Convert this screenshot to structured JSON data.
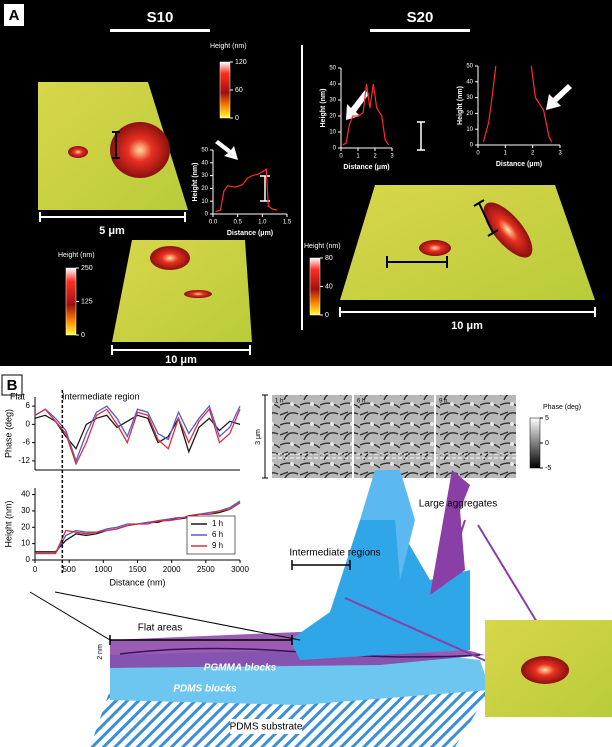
{
  "panel_a": {
    "label": "A",
    "s10": {
      "title": "S10",
      "scale_3d": "5 μm",
      "scale_2d": "10 μm"
    },
    "s20": {
      "title": "S20",
      "scale_3d": "10 μm"
    }
  },
  "panel_b": {
    "label": "B",
    "flat_label": "Flat",
    "intermediate_label": "Intermediate region",
    "boundary_x": 400,
    "phase_image": {
      "panels": [
        "1 h",
        "6 h",
        "9 h"
      ],
      "scale": "3 μm"
    },
    "diagram": {
      "large_aggregates": "Large aggregates",
      "intermediate_regions": "Intermediate regions",
      "flat_areas": "Flat areas",
      "pgmma": "PGMMA blocks",
      "pdms_blocks": "PDMS blocks",
      "substrate": "PDMS substrate",
      "thickness": "2 nm"
    }
  },
  "colorbars": [
    {
      "title": "Height (nm)",
      "lim": [
        0,
        120
      ],
      "ticks": [
        120,
        60,
        0
      ]
    },
    {
      "title": "Height (nm)",
      "lim": [
        0,
        250
      ],
      "ticks": [
        250,
        125,
        0
      ]
    },
    {
      "title": "Height (nm)",
      "lim": [
        0,
        80
      ],
      "ticks": [
        80,
        40,
        0
      ]
    },
    {
      "title": "Phase (deg)",
      "lim": [
        -5,
        5
      ],
      "ticks": [
        5,
        0,
        -5
      ]
    }
  ],
  "chart_data": [
    {
      "type": "line",
      "xlabel": "Distance (μm)",
      "ylabel": "Height (nm)",
      "xlim": [
        0,
        1.5
      ],
      "ylim": [
        0,
        50
      ],
      "xticks": [
        {
          "value": 0,
          "label": "0.0"
        },
        {
          "value": 0.5,
          "label": "0.5"
        },
        {
          "value": 1,
          "label": "1.0"
        },
        {
          "value": 1.5,
          "label": "1.5"
        }
      ],
      "yticks": [
        0,
        10,
        20,
        30,
        40,
        50
      ],
      "color": "#ff2a2a",
      "x": [
        0.05,
        0.15,
        0.22,
        0.3,
        0.45,
        0.6,
        0.7,
        0.8,
        0.9,
        1.0,
        1.08,
        1.12,
        1.2,
        1.3
      ],
      "values": [
        2,
        3,
        18,
        22,
        21,
        23,
        28,
        30,
        31,
        33,
        35,
        6,
        4,
        3
      ]
    },
    {
      "type": "line",
      "xlabel": "Distance (μm)",
      "ylabel": "Height (nm)",
      "xlim": [
        0,
        3
      ],
      "ylim": [
        0,
        50
      ],
      "xticks": [
        0,
        1,
        2,
        3
      ],
      "yticks": [
        0,
        10,
        20,
        30,
        40,
        50
      ],
      "color": "#ff2a2a",
      "x": [
        0.1,
        0.3,
        0.5,
        0.7,
        1.0,
        1.3,
        1.5,
        1.7,
        1.9,
        2.1,
        2.4,
        2.6,
        2.8
      ],
      "values": [
        2,
        3,
        15,
        20,
        20,
        22,
        40,
        25,
        40,
        25,
        20,
        5,
        2
      ]
    },
    {
      "type": "line",
      "xlabel": "Distance (μm)",
      "ylabel": "Height (nm)",
      "xlim": [
        0,
        3
      ],
      "ylim": [
        0,
        50
      ],
      "xticks": [
        0,
        1,
        2,
        3
      ],
      "yticks": [
        0,
        10,
        20,
        30,
        40,
        50
      ],
      "color": "#ff2a2a",
      "x": [
        0.2,
        0.4,
        0.55,
        0.65,
        1.85,
        1.95,
        2.1,
        2.4,
        2.6,
        2.7
      ],
      "values": [
        2,
        15,
        35,
        50,
        null,
        50,
        30,
        22,
        5,
        2
      ]
    },
    {
      "type": "line",
      "ylabel": "Phase (deg)",
      "xlim": [
        0,
        3000
      ],
      "ylim": [
        -15,
        9
      ],
      "yticks": [
        6,
        0,
        -6,
        -12
      ],
      "x": [
        0,
        150,
        300,
        450,
        600,
        750,
        900,
        1050,
        1200,
        1350,
        1500,
        1650,
        1800,
        1950,
        2100,
        2250,
        2400,
        2550,
        2700,
        2850,
        3000
      ],
      "series": [
        {
          "color": "#1a1a1a",
          "values": [
            2,
            3,
            1,
            -4,
            -8,
            0,
            2,
            3,
            -1,
            1,
            3,
            2,
            -6,
            -4,
            2,
            -9,
            -1,
            2,
            -2,
            1,
            0
          ]
        },
        {
          "color": "#5a5ad0",
          "values": [
            3,
            5,
            2,
            -2,
            -12,
            -3,
            4,
            6,
            2,
            -4,
            5,
            4,
            -3,
            -5,
            4,
            -3,
            2,
            6,
            -4,
            -1,
            6
          ]
        },
        {
          "color": "#d83040",
          "values": [
            3,
            5,
            1,
            -3,
            -13,
            -6,
            3,
            5,
            0,
            -6,
            4,
            3,
            -5,
            -8,
            2,
            -6,
            1,
            5,
            -6,
            -3,
            5
          ]
        }
      ]
    },
    {
      "type": "line",
      "xlabel": "Distance (nm)",
      "ylabel": "Height (nm)",
      "xlim": [
        0,
        3000
      ],
      "ylim": [
        0,
        44
      ],
      "xticks": [
        0,
        500,
        1000,
        1500,
        2000,
        2500,
        3000
      ],
      "yticks": [
        0,
        10,
        20,
        30,
        40
      ],
      "legend": "lower right",
      "x": [
        0,
        150,
        300,
        450,
        600,
        750,
        900,
        1050,
        1200,
        1350,
        1500,
        1650,
        1800,
        1950,
        2100,
        2250,
        2400,
        2550,
        2700,
        2850,
        3000
      ],
      "series": [
        {
          "name": "1 h",
          "color": "#1a1a1a",
          "values": [
            5,
            5,
            5,
            12,
            16,
            15,
            16,
            18,
            19,
            21,
            22,
            23,
            23,
            25,
            25,
            26,
            28,
            28,
            29,
            31,
            35
          ]
        },
        {
          "name": "6 h",
          "color": "#5a5ad0",
          "values": [
            4,
            4,
            4,
            15,
            18,
            17,
            17,
            19,
            20,
            22,
            22,
            23,
            24,
            25,
            26,
            26,
            28,
            29,
            30,
            32,
            36
          ]
        },
        {
          "name": "9 h",
          "color": "#d83040",
          "values": [
            4,
            4,
            4,
            18,
            17,
            16,
            17,
            18,
            19,
            21,
            22,
            22,
            24,
            24,
            25,
            27,
            28,
            28,
            30,
            31,
            35
          ]
        }
      ]
    }
  ]
}
